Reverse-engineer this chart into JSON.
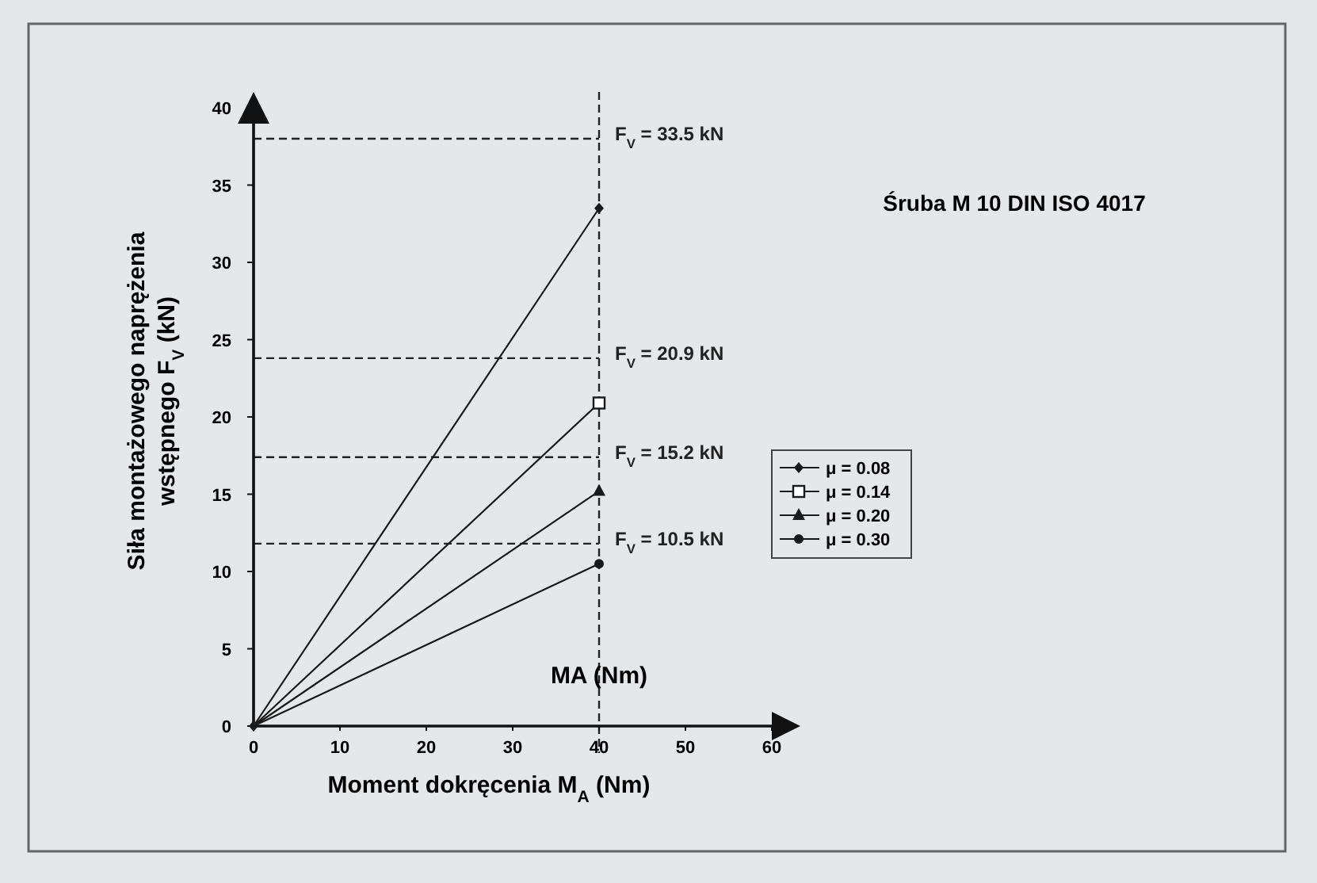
{
  "chart_data": {
    "type": "line",
    "title": "Śruba M 10 DIN ISO 4017",
    "xlabel": "Moment dokręcenia M$_{A}$ (Nm)",
    "ylabel": "Siła montażowego naprężenia\nwstępnego F$_{V}$ (kN)",
    "x": [
      0,
      40
    ],
    "series": [
      {
        "name": "μ = 0.08",
        "color": "#1a1a1a",
        "marker": "diamond",
        "values": [
          0,
          33.5
        ]
      },
      {
        "name": "μ = 0.14",
        "color": "#1a1a1a",
        "marker": "square",
        "values": [
          0,
          20.9
        ]
      },
      {
        "name": "μ = 0.20",
        "color": "#1a1a1a",
        "marker": "triangle",
        "values": [
          0,
          15.2
        ]
      },
      {
        "name": "μ = 0.30",
        "color": "#1a1a1a",
        "marker": "circle",
        "values": [
          0,
          10.5
        ]
      }
    ],
    "xlim": [
      0,
      60
    ],
    "xticks": [
      0,
      10,
      20,
      30,
      40,
      50,
      60
    ],
    "ylim": [
      0,
      40
    ],
    "yticks": [
      0,
      5,
      10,
      15,
      20,
      25,
      30,
      35,
      40
    ],
    "grid": false,
    "legend": "right",
    "line_style": "solid",
    "ref_lines": [
      {
        "axis": "y",
        "value": 38,
        "label": null,
        "line_style": "dashed"
      },
      {
        "axis": "y",
        "value": 23.8,
        "label": null,
        "line_style": "dashed"
      },
      {
        "axis": "y",
        "value": 17.4,
        "label": null,
        "line_style": "dashed"
      },
      {
        "axis": "y",
        "value": 11.8,
        "label": null,
        "line_style": "dashed"
      },
      {
        "axis": "x",
        "value": 40,
        "label": null,
        "line_style": "dashed"
      }
    ],
    "annotations": [
      "MA (Nm)",
      "F$_{V}$ = 33.5 kN",
      "F$_{V}$ = 20.9 kN",
      "F$_{V}$ = 15.2 kN",
      "F$_{V}$ = 10.5 kN"
    ]
  }
}
